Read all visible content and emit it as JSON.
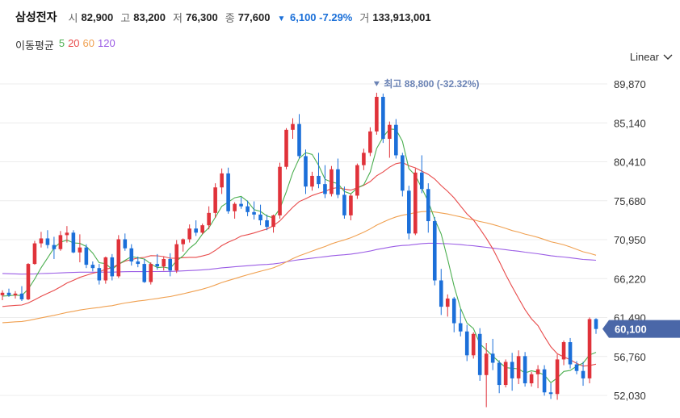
{
  "quote": {
    "name": "삼성전자",
    "open_label": "시",
    "open": "82,900",
    "high_label": "고",
    "high": "83,200",
    "low_label": "저",
    "low": "76,300",
    "close_label": "종",
    "close": "77,600",
    "change": "6,100",
    "change_pct": "-7.29%",
    "volume_label": "거",
    "volume": "133,913,001"
  },
  "ma_legend": {
    "title": "이동평균",
    "items": [
      {
        "label": "5",
        "color": "#4caf50"
      },
      {
        "label": "20",
        "color": "#e84a4a"
      },
      {
        "label": "60",
        "color": "#f0a050"
      },
      {
        "label": "120",
        "color": "#9b5de5"
      }
    ]
  },
  "scale_selector": {
    "value": "Linear"
  },
  "chart_data": {
    "type": "candlestick",
    "y_scale": "linear",
    "yticks": [
      "89,870",
      "85,140",
      "80,410",
      "75,680",
      "70,950",
      "66,220",
      "61,490",
      "56,760",
      "52,030"
    ],
    "ylim": [
      51200,
      90500
    ],
    "grid": true,
    "colors": {
      "up": "#e0323a",
      "down": "#1b6fd9",
      "ma5": "#4caf50",
      "ma20": "#e84a4a",
      "ma60": "#f0a050",
      "ma120": "#9b5de5"
    },
    "high_annotation": "최고 88,800 (-32.32%)",
    "last_price": "60,100",
    "candles": [
      [
        64200,
        64800,
        63600,
        64500
      ],
      [
        64500,
        65000,
        64000,
        64200
      ],
      [
        64200,
        64700,
        63800,
        64400
      ],
      [
        64400,
        65300,
        63500,
        63700
      ],
      [
        63700,
        68100,
        63600,
        68000
      ],
      [
        68000,
        70800,
        67900,
        70500
      ],
      [
        70500,
        71900,
        70000,
        71100
      ],
      [
        71100,
        72100,
        69900,
        70300
      ],
      [
        70300,
        71300,
        68600,
        69800
      ],
      [
        69800,
        72000,
        69600,
        71500
      ],
      [
        71500,
        72600,
        70600,
        71800
      ],
      [
        71800,
        72100,
        69300,
        69400
      ],
      [
        69400,
        71600,
        68200,
        70000
      ],
      [
        70000,
        70400,
        67500,
        67900
      ],
      [
        67900,
        68300,
        67100,
        67500
      ],
      [
        67500,
        68000,
        65500,
        66000
      ],
      [
        66000,
        68900,
        65600,
        68800
      ],
      [
        68800,
        69200,
        66000,
        66500
      ],
      [
        66500,
        71500,
        66300,
        71000
      ],
      [
        71000,
        71700,
        69600,
        69900
      ],
      [
        69900,
        70400,
        67800,
        68300
      ],
      [
        68300,
        68900,
        67600,
        68000
      ],
      [
        68000,
        68600,
        65700,
        65800
      ],
      [
        65800,
        68200,
        65500,
        68000
      ],
      [
        68000,
        69200,
        67300,
        67700
      ],
      [
        67700,
        68900,
        67200,
        68600
      ],
      [
        68600,
        69300,
        66500,
        67200
      ],
      [
        67200,
        70900,
        66900,
        70400
      ],
      [
        70400,
        71100,
        69500,
        71000
      ],
      [
        71000,
        72800,
        70600,
        72300
      ],
      [
        72300,
        73300,
        71400,
        71800
      ],
      [
        71800,
        72900,
        71600,
        72700
      ],
      [
        72700,
        75000,
        72200,
        74200
      ],
      [
        74200,
        77800,
        73600,
        77300
      ],
      [
        77300,
        79600,
        76500,
        79000
      ],
      [
        79000,
        79700,
        74100,
        74400
      ],
      [
        74400,
        75500,
        73500,
        75300
      ],
      [
        75300,
        76100,
        74700,
        75000
      ],
      [
        75000,
        75700,
        73800,
        74300
      ],
      [
        74300,
        75600,
        73400,
        74000
      ],
      [
        74000,
        75200,
        72700,
        73300
      ],
      [
        73300,
        74000,
        72100,
        72500
      ],
      [
        72500,
        74000,
        71800,
        73900
      ],
      [
        73900,
        80300,
        73500,
        79800
      ],
      [
        79800,
        84500,
        79500,
        84300
      ],
      [
        84300,
        85700,
        83200,
        85000
      ],
      [
        85000,
        86200,
        80800,
        81100
      ],
      [
        81100,
        81900,
        76500,
        77400
      ],
      [
        77400,
        79200,
        76900,
        78700
      ],
      [
        78700,
        81500,
        77200,
        77700
      ],
      [
        77700,
        80000,
        76000,
        76500
      ],
      [
        76500,
        79900,
        76200,
        79500
      ],
      [
        79500,
        80800,
        76000,
        76400
      ],
      [
        76400,
        77400,
        73500,
        73900
      ],
      [
        73900,
        76500,
        73300,
        76300
      ],
      [
        76300,
        80200,
        75900,
        80000
      ],
      [
        80000,
        82000,
        79400,
        81500
      ],
      [
        81500,
        84600,
        81100,
        84100
      ],
      [
        84100,
        88800,
        83700,
        88300
      ],
      [
        88300,
        88700,
        82700,
        83200
      ],
      [
        83200,
        85300,
        80900,
        84900
      ],
      [
        84900,
        85600,
        80800,
        81200
      ],
      [
        81200,
        81500,
        76200,
        76900
      ],
      [
        76900,
        77500,
        71000,
        71700
      ],
      [
        71700,
        79600,
        71500,
        79100
      ],
      [
        79100,
        81200,
        76600,
        77100
      ],
      [
        77100,
        77800,
        71800,
        73200
      ],
      [
        73200,
        73700,
        65400,
        66000
      ],
      [
        66000,
        67400,
        61800,
        62800
      ],
      [
        62800,
        64300,
        61600,
        63800
      ],
      [
        63800,
        64000,
        59700,
        60800
      ],
      [
        60800,
        62500,
        59200,
        59800
      ],
      [
        59800,
        60600,
        56200,
        56900
      ],
      [
        56900,
        59700,
        56500,
        59500
      ],
      [
        59500,
        60200,
        53800,
        54500
      ],
      [
        54500,
        58400,
        50600,
        57100
      ],
      [
        57100,
        58900,
        55100,
        56000
      ],
      [
        56000,
        56300,
        52300,
        53300
      ],
      [
        53300,
        56400,
        53000,
        56100
      ],
      [
        56100,
        57200,
        52600,
        54100
      ],
      [
        54100,
        57500,
        53400,
        56800
      ],
      [
        56800,
        57300,
        53100,
        53500
      ],
      [
        53500,
        54900,
        53100,
        54600
      ],
      [
        54600,
        55700,
        52900,
        55200
      ],
      [
        55200,
        55700,
        52000,
        52400
      ],
      [
        52400,
        53500,
        51600,
        52200
      ],
      [
        52200,
        57000,
        51500,
        56400
      ],
      [
        56400,
        58700,
        55700,
        58500
      ],
      [
        58500,
        59000,
        55300,
        55800
      ],
      [
        55800,
        56200,
        54600,
        55000
      ],
      [
        55000,
        56100,
        53200,
        54100
      ],
      [
        54100,
        61500,
        53500,
        61300
      ],
      [
        61300,
        61400,
        59500,
        60100
      ]
    ]
  }
}
